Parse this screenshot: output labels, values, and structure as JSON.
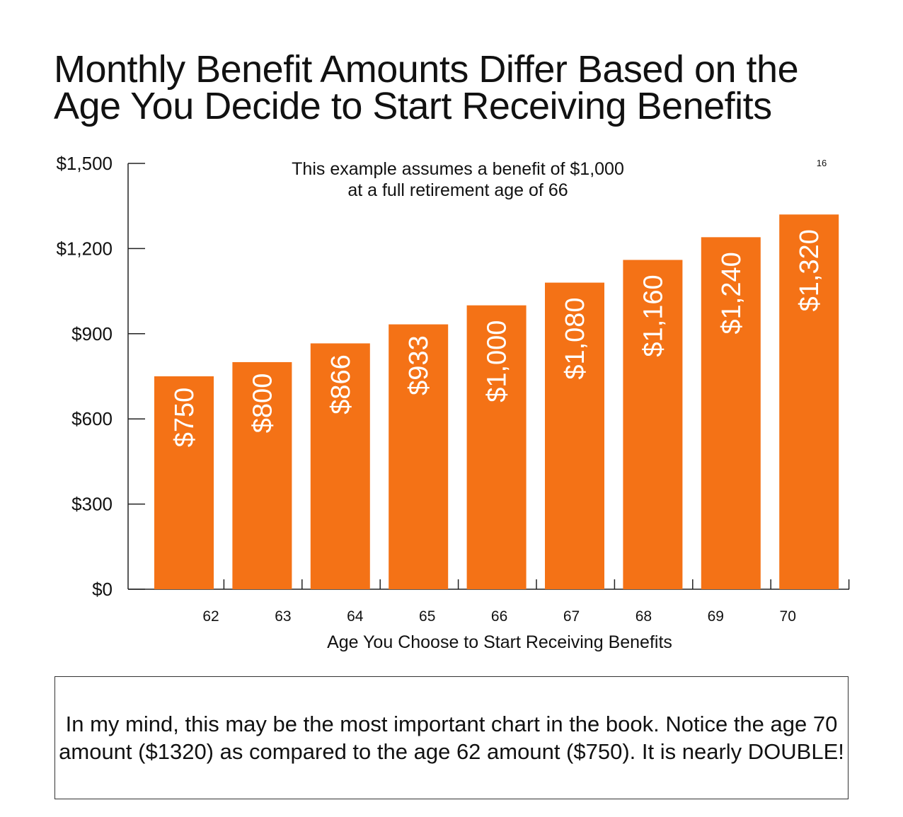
{
  "title": {
    "line1": "Monthly Benefit Amounts Differ Based on the",
    "line2": "Age You Decide to Start Receiving Benefits"
  },
  "chart_data": {
    "type": "bar",
    "categories": [
      "62",
      "63",
      "64",
      "65",
      "66",
      "67",
      "68",
      "69",
      "70"
    ],
    "values": [
      750,
      800,
      866,
      933,
      1000,
      1080,
      1160,
      1240,
      1320
    ],
    "data_labels": [
      "$750",
      "$800",
      "$866",
      "$933",
      "$1,000",
      "$1,080",
      "$1,160",
      "$1,240",
      "$1,320"
    ],
    "xlabel": "Age You Choose to Start Receiving Benefits",
    "ylabel": "",
    "ylim": [
      0,
      1500
    ],
    "yticks": [
      0,
      300,
      600,
      900,
      1200,
      1500
    ],
    "ytick_labels": [
      "$0",
      "$300",
      "$600",
      "$900",
      "$1,200",
      "$1,500"
    ],
    "annotation": [
      "This example assumes a benefit of $1,000",
      "at a full retirement age of 66"
    ],
    "footnote": "16",
    "bar_color": "#F47216",
    "label_color": "#ffffff",
    "grid": false,
    "legend": "none"
  },
  "note": {
    "text": "In my mind, this may be the most important chart in the book.  Notice the age 70 amount ($1320) as compared to the age 62 amount ($750). It is nearly DOUBLE!"
  }
}
